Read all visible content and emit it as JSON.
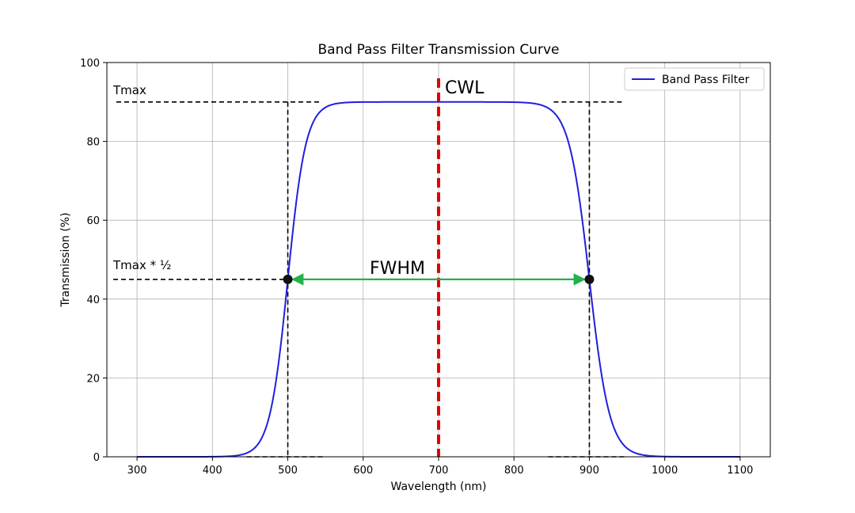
{
  "chart_data": {
    "type": "line",
    "title": "Band Pass Filter Transmission Curve",
    "xlabel": "Wavelength (nm)",
    "ylabel": "Transmission (%)",
    "xlim": [
      260,
      1140
    ],
    "ylim": [
      0,
      100
    ],
    "xticks": [
      300,
      400,
      500,
      600,
      700,
      800,
      900,
      1000,
      1100
    ],
    "yticks": [
      0,
      20,
      40,
      60,
      80,
      100
    ],
    "grid": true,
    "legend": {
      "location": "top-right",
      "entries": [
        "Band Pass Filter"
      ]
    },
    "series": [
      {
        "name": "Band Pass Filter",
        "color": "#1f1fe0",
        "model": {
          "tmax": 90,
          "edge_low_nm": 500,
          "edge_high_nm": 900,
          "low_edge_width_nm": 12,
          "high_edge_width_nm": 13.5,
          "x_start": 300,
          "x_end": 1100
        }
      }
    ],
    "annotations": {
      "tmax": {
        "label": "Tmax",
        "value": 90
      },
      "half_max": {
        "label": "Tmax * ½",
        "value": 45
      },
      "cwl": {
        "label": "CWL",
        "x": 700,
        "y_top": 96,
        "color": "#e00000"
      },
      "fwhm": {
        "label": "FWHM",
        "x_start": 500,
        "x_end": 900,
        "y": 45,
        "color": "#22b14c"
      },
      "half_points": [
        {
          "x": 500,
          "y": 45
        },
        {
          "x": 900,
          "y": 45
        }
      ]
    },
    "colors": {
      "curve": "#1f1fe0",
      "cwl": "#e00000",
      "fwhm_arrow": "#22b14c",
      "fwhm_text": "#5aa83a",
      "grid": "#b0b0b0"
    }
  }
}
